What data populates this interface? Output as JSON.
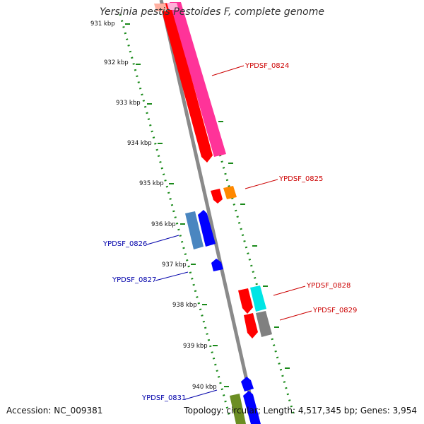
{
  "title": "Yersinia pestis Pestoides F, complete genome",
  "accession_text": "Accession: NC_009381",
  "summary_text": "Topology: circular; Length: 4,517,345 bp; Genes: 3,954",
  "ticks": [
    "931 kbp",
    "932 kbp",
    "933 kbp",
    "934 kbp",
    "935 kbp",
    "936 kbp",
    "937 kbp",
    "938 kbp",
    "939 kbp",
    "940 kbp"
  ],
  "genes": {
    "ypdsf_0824": {
      "label": "YPDSF_0824",
      "color": "#cc0000"
    },
    "ypdsf_0825": {
      "label": "YPDSF_0825",
      "color": "#cc0000"
    },
    "ypdsf_0826": {
      "label": "YPDSF_0826",
      "color": "#0000aa"
    },
    "ypdsf_0827": {
      "label": "YPDSF_0827",
      "color": "#0000aa"
    },
    "ypdsf_0828": {
      "label": "YPDSF_0828",
      "color": "#cc0000"
    },
    "ypdsf_0829": {
      "label": "YPDSF_0829",
      "color": "#cc0000"
    },
    "ypdsf_0831": {
      "label": "YPDSF_0831",
      "color": "#0000aa"
    }
  },
  "colors": {
    "backbone": "#8a8a8a",
    "dots": "#1a8a1a",
    "red": "#ff0000",
    "pink": "#ff3399",
    "orange": "#ff8800",
    "steelblue": "#4a86c0",
    "blue": "#0000ff",
    "cyan": "#00e5e5",
    "gray": "#808080",
    "olive": "#6b8e23"
  }
}
